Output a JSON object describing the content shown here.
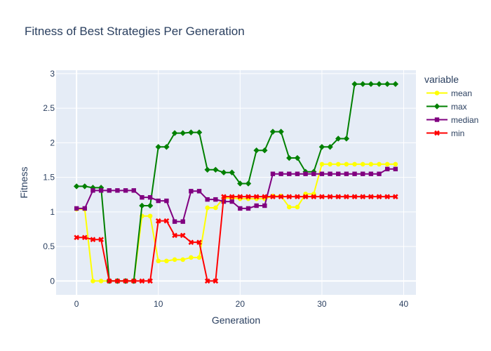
{
  "chart_data": {
    "type": "line",
    "title": "Fitness of Best Strategies Per Generation",
    "xlabel": "Generation",
    "ylabel": "Fitness",
    "xlim": [
      -2.5,
      41.5
    ],
    "ylim": [
      -0.2,
      3.05
    ],
    "x_ticks": [
      0,
      10,
      20,
      30,
      40
    ],
    "y_ticks": [
      0,
      0.5,
      1,
      1.5,
      2,
      2.5,
      3
    ],
    "y_tick_labels": [
      "0",
      "0.5",
      "1",
      "1.5",
      "2",
      "2.5",
      "3"
    ],
    "grid": true,
    "legend_title": "variable",
    "legend_position": "right",
    "x": [
      0,
      1,
      2,
      3,
      4,
      5,
      6,
      7,
      8,
      9,
      10,
      11,
      12,
      13,
      14,
      15,
      16,
      17,
      18,
      19,
      20,
      21,
      22,
      23,
      24,
      25,
      26,
      27,
      28,
      29,
      30,
      31,
      32,
      33,
      34,
      35,
      36,
      37,
      38,
      39
    ],
    "series": [
      {
        "name": "mean",
        "color": "#ffff00",
        "marker": "circle",
        "values": [
          1.04,
          1.04,
          0.0,
          0.0,
          0.0,
          0.0,
          0.0,
          0.0,
          0.94,
          0.94,
          0.29,
          0.29,
          0.31,
          0.31,
          0.34,
          0.34,
          1.06,
          1.06,
          1.2,
          1.2,
          1.19,
          1.19,
          1.19,
          1.19,
          1.23,
          1.23,
          1.07,
          1.07,
          1.26,
          1.26,
          1.69,
          1.69,
          1.69,
          1.69,
          1.69,
          1.69,
          1.69,
          1.69,
          1.69,
          1.69
        ]
      },
      {
        "name": "max",
        "color": "#008000",
        "marker": "diamond",
        "values": [
          1.37,
          1.37,
          1.35,
          1.35,
          0.0,
          0.0,
          0.0,
          0.0,
          1.09,
          1.09,
          1.94,
          1.94,
          2.14,
          2.14,
          2.15,
          2.15,
          1.61,
          1.61,
          1.57,
          1.57,
          1.41,
          1.41,
          1.89,
          1.89,
          2.16,
          2.16,
          1.78,
          1.78,
          1.58,
          1.58,
          1.94,
          1.94,
          2.06,
          2.06,
          2.85,
          2.85,
          2.85,
          2.85,
          2.85,
          2.85
        ]
      },
      {
        "name": "median",
        "color": "#800080",
        "marker": "square",
        "values": [
          1.05,
          1.05,
          1.31,
          1.31,
          1.31,
          1.31,
          1.31,
          1.31,
          1.21,
          1.21,
          1.16,
          1.16,
          0.86,
          0.86,
          1.3,
          1.3,
          1.18,
          1.18,
          1.15,
          1.15,
          1.05,
          1.05,
          1.09,
          1.09,
          1.55,
          1.55,
          1.55,
          1.55,
          1.55,
          1.55,
          1.55,
          1.55,
          1.55,
          1.55,
          1.55,
          1.55,
          1.55,
          1.55,
          1.62,
          1.62
        ]
      },
      {
        "name": "min",
        "color": "#ff0000",
        "marker": "x",
        "values": [
          0.63,
          0.63,
          0.6,
          0.6,
          0.0,
          0.0,
          0.0,
          0.0,
          0.0,
          0.0,
          0.87,
          0.87,
          0.66,
          0.66,
          0.56,
          0.56,
          0.0,
          0.0,
          1.22,
          1.22,
          1.22,
          1.22,
          1.22,
          1.22,
          1.22,
          1.22,
          1.22,
          1.22,
          1.22,
          1.22,
          1.22,
          1.22,
          1.22,
          1.22,
          1.22,
          1.22,
          1.22,
          1.22,
          1.22,
          1.22
        ]
      }
    ],
    "colors": {
      "plot_background": "#e5ecf6",
      "grid": "#ffffff",
      "text": "#2a3f5f"
    }
  }
}
